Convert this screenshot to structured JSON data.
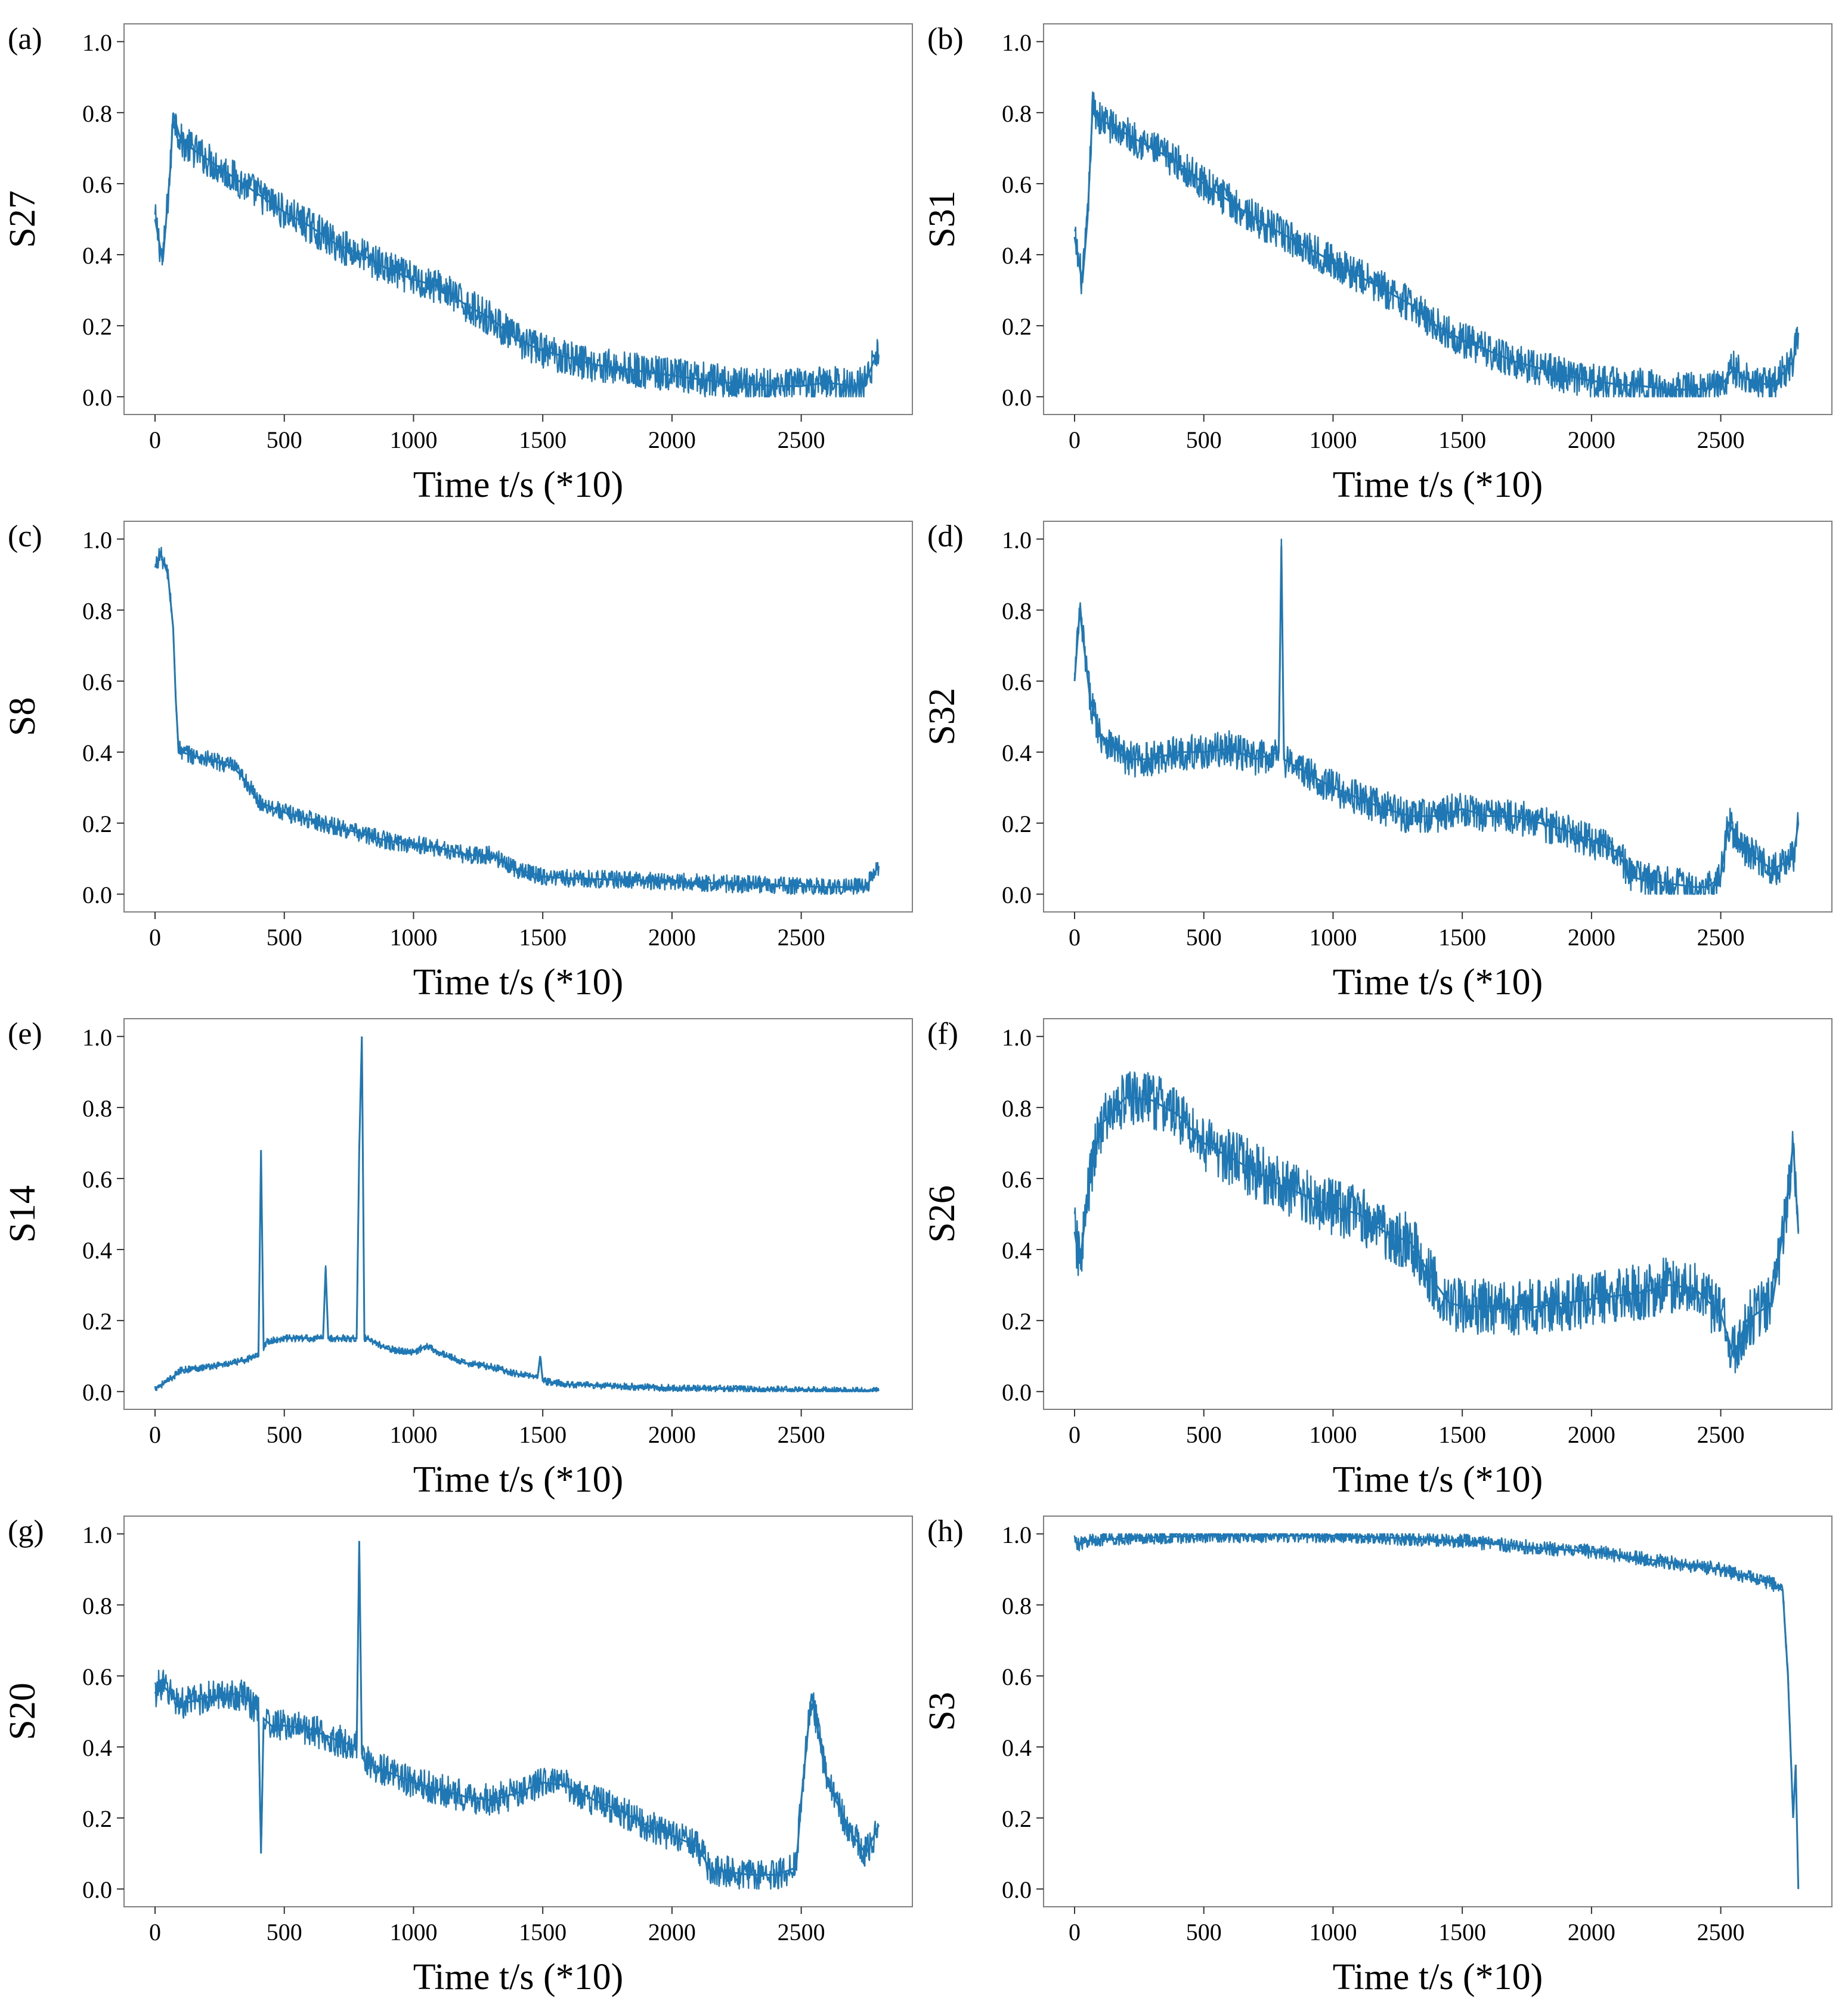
{
  "figure": {
    "accent_color": "#1f77b4",
    "frame_color": "#7f7f7f"
  },
  "chart_data": [
    {
      "panel": "(a)",
      "type": "line",
      "ylabel": "S27",
      "xlabel": "Time t/s (*10)",
      "xlim": [
        -120,
        2930
      ],
      "ylim": [
        -0.05,
        1.05
      ],
      "xticks": [
        "0",
        "500",
        "1000",
        "1500",
        "2000",
        "2500"
      ],
      "yticks": [
        "0.0",
        "0.2",
        "0.4",
        "0.6",
        "0.8",
        "1.0"
      ],
      "x": [
        0,
        30,
        60,
        70,
        100,
        200,
        300,
        400,
        500,
        600,
        700,
        800,
        900,
        1000,
        1100,
        1200,
        1300,
        1400,
        1500,
        1600,
        1700,
        1800,
        1900,
        2000,
        2100,
        2200,
        2300,
        2400,
        2500,
        2600,
        2700,
        2750,
        2780,
        2800
      ],
      "values": [
        0.5,
        0.38,
        0.65,
        0.8,
        0.72,
        0.67,
        0.62,
        0.57,
        0.52,
        0.48,
        0.43,
        0.4,
        0.36,
        0.33,
        0.31,
        0.26,
        0.22,
        0.16,
        0.13,
        0.11,
        0.09,
        0.08,
        0.07,
        0.06,
        0.05,
        0.04,
        0.035,
        0.03,
        0.03,
        0.04,
        0.03,
        0.04,
        0.1,
        0.12
      ],
      "noise": 0.05
    },
    {
      "panel": "(b)",
      "type": "line",
      "ylabel": "S31",
      "xlabel": "Time t/s (*10)",
      "xlim": [
        -120,
        2930
      ],
      "ylim": [
        -0.05,
        1.05
      ],
      "xticks": [
        "0",
        "500",
        "1000",
        "1500",
        "2000",
        "2500"
      ],
      "yticks": [
        "0.0",
        "0.2",
        "0.4",
        "0.6",
        "0.8",
        "1.0"
      ],
      "x": [
        0,
        30,
        50,
        70,
        100,
        200,
        300,
        400,
        500,
        600,
        700,
        800,
        900,
        1000,
        1100,
        1200,
        1300,
        1400,
        1500,
        1600,
        1700,
        1800,
        1900,
        2000,
        2100,
        2200,
        2300,
        2400,
        2500,
        2550,
        2600,
        2700,
        2780,
        2800
      ],
      "values": [
        0.45,
        0.32,
        0.5,
        0.82,
        0.78,
        0.74,
        0.7,
        0.66,
        0.6,
        0.55,
        0.5,
        0.46,
        0.42,
        0.38,
        0.34,
        0.3,
        0.26,
        0.2,
        0.16,
        0.13,
        0.1,
        0.08,
        0.06,
        0.045,
        0.035,
        0.03,
        0.02,
        0.02,
        0.03,
        0.08,
        0.05,
        0.03,
        0.1,
        0.18
      ],
      "noise": 0.05
    },
    {
      "panel": "(c)",
      "type": "line",
      "ylabel": "S8",
      "xlabel": "Time t/s (*10)",
      "xlim": [
        -120,
        2930
      ],
      "ylim": [
        -0.05,
        1.05
      ],
      "xticks": [
        "0",
        "500",
        "1000",
        "1500",
        "2000",
        "2500"
      ],
      "yticks": [
        "0.0",
        "0.2",
        "0.4",
        "0.6",
        "0.8",
        "1.0"
      ],
      "x": [
        0,
        20,
        50,
        70,
        80,
        90,
        100,
        200,
        300,
        350,
        400,
        500,
        600,
        700,
        800,
        900,
        1000,
        1100,
        1200,
        1300,
        1400,
        1500,
        1600,
        1800,
        2000,
        2200,
        2400,
        2600,
        2750,
        2800
      ],
      "values": [
        0.92,
        0.96,
        0.9,
        0.75,
        0.55,
        0.42,
        0.4,
        0.38,
        0.36,
        0.32,
        0.26,
        0.23,
        0.21,
        0.19,
        0.17,
        0.15,
        0.14,
        0.13,
        0.11,
        0.11,
        0.07,
        0.05,
        0.045,
        0.04,
        0.035,
        0.03,
        0.025,
        0.02,
        0.02,
        0.08
      ],
      "noise": 0.025
    },
    {
      "panel": "(d)",
      "type": "line",
      "ylabel": "S32",
      "xlabel": "Time t/s (*10)",
      "xlim": [
        -120,
        2930
      ],
      "ylim": [
        -0.05,
        1.05
      ],
      "xticks": [
        "0",
        "500",
        "1000",
        "1500",
        "2000",
        "2500"
      ],
      "yticks": [
        "0.0",
        "0.2",
        "0.4",
        "0.6",
        "0.8",
        "1.0"
      ],
      "x": [
        0,
        20,
        60,
        100,
        200,
        300,
        400,
        500,
        600,
        700,
        790,
        800,
        810,
        900,
        1000,
        1100,
        1200,
        1300,
        1400,
        1500,
        1600,
        1700,
        1800,
        1900,
        2000,
        2100,
        2150,
        2200,
        2300,
        2400,
        2450,
        2500,
        2530,
        2600,
        2700,
        2780,
        2800
      ],
      "values": [
        0.6,
        0.8,
        0.55,
        0.45,
        0.38,
        0.38,
        0.4,
        0.4,
        0.41,
        0.38,
        0.4,
        0.98,
        0.38,
        0.34,
        0.3,
        0.27,
        0.24,
        0.22,
        0.22,
        0.24,
        0.22,
        0.22,
        0.2,
        0.18,
        0.15,
        0.12,
        0.05,
        0.04,
        0.03,
        0.02,
        0.02,
        0.05,
        0.2,
        0.12,
        0.07,
        0.1,
        0.2
      ],
      "noise": 0.05
    },
    {
      "panel": "(e)",
      "type": "line",
      "ylabel": "S14",
      "xlabel": "Time t/s (*10)",
      "xlim": [
        -120,
        2930
      ],
      "ylim": [
        -0.05,
        1.05
      ],
      "xticks": [
        "0",
        "500",
        "1000",
        "1500",
        "2000",
        "2500"
      ],
      "yticks": [
        "0.0",
        "0.2",
        "0.4",
        "0.6",
        "0.8",
        "1.0"
      ],
      "x": [
        0,
        50,
        100,
        200,
        300,
        400,
        410,
        420,
        430,
        500,
        600,
        650,
        660,
        670,
        700,
        780,
        790,
        800,
        810,
        820,
        900,
        1000,
        1050,
        1100,
        1200,
        1300,
        1400,
        1480,
        1490,
        1500,
        1600,
        1800,
        2000,
        2200,
        2500,
        2800
      ],
      "values": [
        0.01,
        0.03,
        0.06,
        0.07,
        0.08,
        0.1,
        0.68,
        0.12,
        0.14,
        0.15,
        0.15,
        0.15,
        0.35,
        0.15,
        0.15,
        0.15,
        0.68,
        1.0,
        0.15,
        0.15,
        0.12,
        0.11,
        0.13,
        0.11,
        0.08,
        0.07,
        0.05,
        0.04,
        0.1,
        0.03,
        0.02,
        0.015,
        0.01,
        0.008,
        0.005,
        0.003
      ],
      "noise": 0.01
    },
    {
      "panel": "(f)",
      "type": "line",
      "ylabel": "S26",
      "xlabel": "Time t/s (*10)",
      "xlim": [
        -120,
        2930
      ],
      "ylim": [
        -0.05,
        1.05
      ],
      "xticks": [
        "0",
        "500",
        "1000",
        "1500",
        "2000",
        "2500"
      ],
      "yticks": [
        "0.0",
        "0.2",
        "0.4",
        "0.6",
        "0.8",
        "1.0"
      ],
      "x": [
        0,
        20,
        60,
        100,
        200,
        300,
        400,
        500,
        600,
        700,
        800,
        900,
        1000,
        1100,
        1200,
        1300,
        1400,
        1450,
        1500,
        1600,
        1700,
        1800,
        1900,
        2000,
        2100,
        2200,
        2300,
        2400,
        2500,
        2550,
        2600,
        2700,
        2750,
        2780,
        2800
      ],
      "values": [
        0.45,
        0.36,
        0.6,
        0.75,
        0.83,
        0.82,
        0.78,
        0.7,
        0.66,
        0.62,
        0.58,
        0.55,
        0.52,
        0.5,
        0.45,
        0.42,
        0.3,
        0.25,
        0.24,
        0.24,
        0.23,
        0.24,
        0.25,
        0.26,
        0.27,
        0.28,
        0.3,
        0.29,
        0.22,
        0.1,
        0.2,
        0.25,
        0.5,
        0.7,
        0.45
      ],
      "noise": 0.08
    },
    {
      "panel": "(g)",
      "type": "line",
      "ylabel": "S20",
      "xlabel": "Time t/s (*10)",
      "xlim": [
        -120,
        2930
      ],
      "ylim": [
        -0.05,
        1.05
      ],
      "xticks": [
        "0",
        "500",
        "1000",
        "1500",
        "2000",
        "2500"
      ],
      "yticks": [
        "0.0",
        "0.2",
        "0.4",
        "0.6",
        "0.8",
        "1.0"
      ],
      "x": [
        0,
        20,
        100,
        200,
        300,
        350,
        400,
        410,
        420,
        450,
        500,
        600,
        700,
        780,
        790,
        800,
        810,
        900,
        1000,
        1100,
        1200,
        1300,
        1400,
        1500,
        1600,
        1700,
        1800,
        1900,
        2000,
        2100,
        2150,
        2200,
        2300,
        2400,
        2480,
        2500,
        2540,
        2600,
        2700,
        2750,
        2800
      ],
      "values": [
        0.55,
        0.58,
        0.52,
        0.54,
        0.55,
        0.54,
        0.5,
        0.1,
        0.48,
        0.46,
        0.46,
        0.45,
        0.42,
        0.4,
        0.98,
        0.38,
        0.36,
        0.33,
        0.3,
        0.28,
        0.26,
        0.25,
        0.27,
        0.3,
        0.29,
        0.25,
        0.22,
        0.18,
        0.15,
        0.12,
        0.05,
        0.05,
        0.04,
        0.04,
        0.06,
        0.25,
        0.55,
        0.3,
        0.15,
        0.1,
        0.18
      ],
      "noise": 0.045
    },
    {
      "panel": "(h)",
      "type": "line",
      "ylabel": "S3",
      "xlabel": "Time t/s (*10)",
      "xlim": [
        -120,
        2930
      ],
      "ylim": [
        -0.05,
        1.05
      ],
      "xticks": [
        "0",
        "500",
        "1000",
        "1500",
        "2000",
        "2500"
      ],
      "yticks": [
        "0.0",
        "0.2",
        "0.4",
        "0.6",
        "0.8",
        "1.0"
      ],
      "x": [
        0,
        20,
        50,
        100,
        300,
        500,
        700,
        1000,
        1200,
        1500,
        1800,
        2000,
        2200,
        2400,
        2500,
        2600,
        2700,
        2740,
        2760,
        2780,
        2790,
        2800
      ],
      "values": [
        0.98,
        0.97,
        0.98,
        0.985,
        0.99,
        0.995,
        0.995,
        0.995,
        0.99,
        0.98,
        0.96,
        0.95,
        0.93,
        0.91,
        0.9,
        0.88,
        0.86,
        0.84,
        0.6,
        0.2,
        0.35,
        0.0
      ],
      "noise": 0.02
    }
  ]
}
